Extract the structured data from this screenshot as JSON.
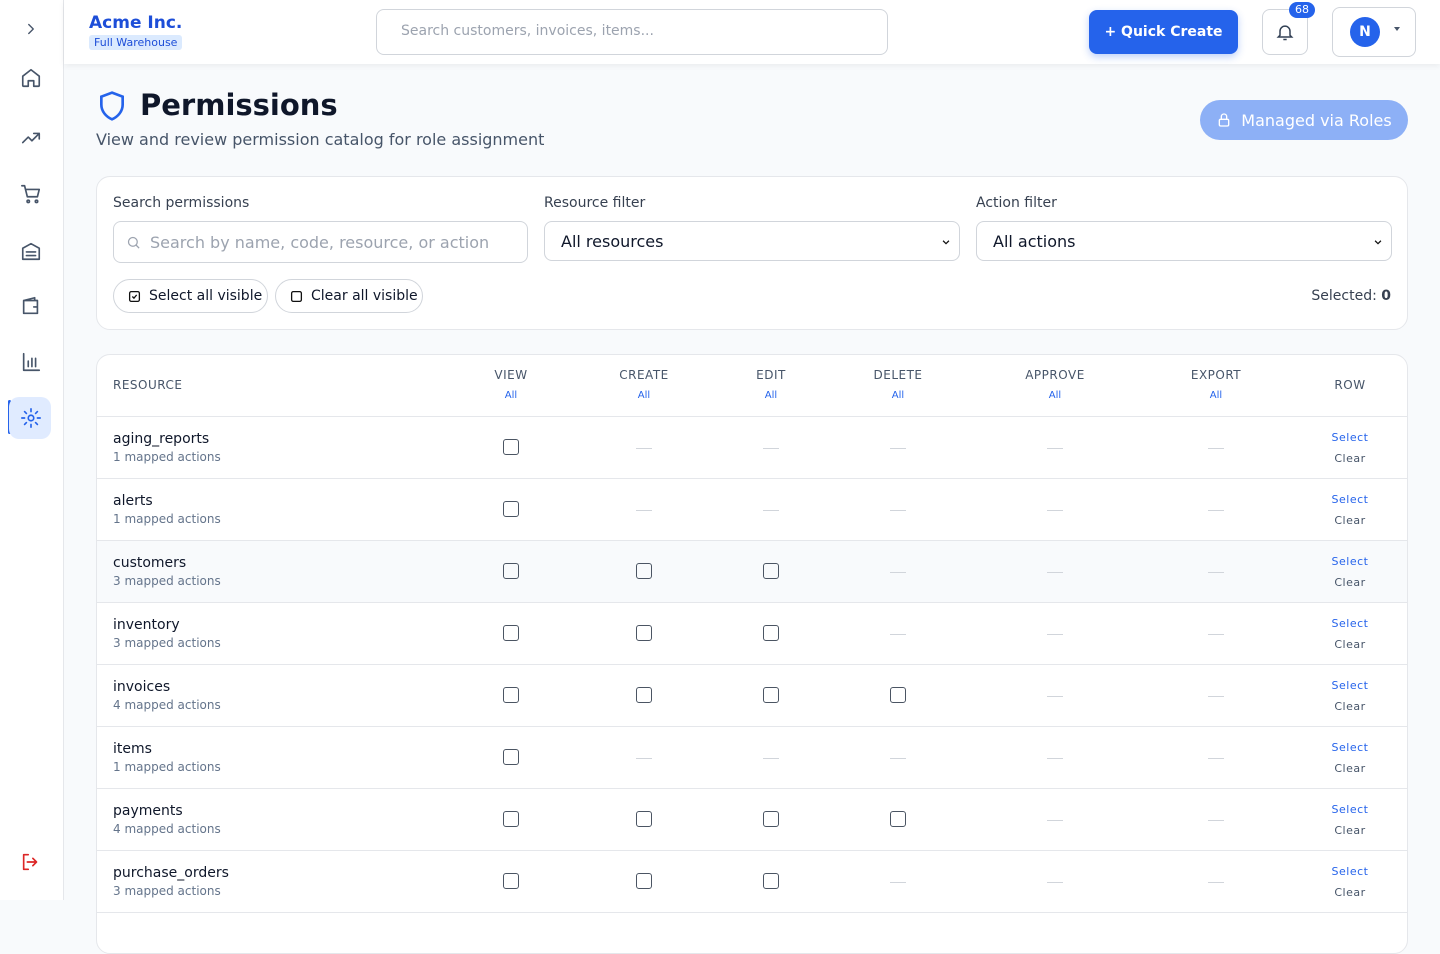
{
  "header": {
    "company": "Acme Inc.",
    "warehouse": "Full Warehouse",
    "search_placeholder": "Search customers, invoices, items...",
    "quick_create": "+ Quick Create",
    "notifications": 68,
    "avatar": "N"
  },
  "page": {
    "title": "Permissions",
    "subtitle": "View and review permission catalog for role assignment",
    "managed": "Managed via Roles"
  },
  "filters": {
    "search_label": "Search permissions",
    "search_placeholder": "Search by name, code, resource, or action",
    "resource_label": "Resource filter",
    "resource_value": "All resources",
    "action_label": "Action filter",
    "action_value": "All actions",
    "select_all": "Select all visible",
    "clear_all": "Clear all visible",
    "selected_label": "Selected:",
    "selected_count": 0
  },
  "table": {
    "columns": [
      "RESOURCE",
      "VIEW",
      "CREATE",
      "EDIT",
      "DELETE",
      "APPROVE",
      "EXPORT",
      "ROW"
    ],
    "all_label": "All",
    "select_label": "Select",
    "clear_label": "Clear",
    "rows": [
      {
        "name": "aging_reports",
        "mapped": "1 mapped actions",
        "actions": [
          true,
          false,
          false,
          false,
          false,
          false
        ]
      },
      {
        "name": "alerts",
        "mapped": "1 mapped actions",
        "actions": [
          true,
          false,
          false,
          false,
          false,
          false
        ]
      },
      {
        "name": "customers",
        "mapped": "3 mapped actions",
        "actions": [
          true,
          true,
          true,
          false,
          false,
          false
        ]
      },
      {
        "name": "inventory",
        "mapped": "3 mapped actions",
        "actions": [
          true,
          true,
          true,
          false,
          false,
          false
        ]
      },
      {
        "name": "invoices",
        "mapped": "4 mapped actions",
        "actions": [
          true,
          true,
          true,
          true,
          false,
          false
        ]
      },
      {
        "name": "items",
        "mapped": "1 mapped actions",
        "actions": [
          true,
          false,
          false,
          false,
          false,
          false
        ]
      },
      {
        "name": "payments",
        "mapped": "4 mapped actions",
        "actions": [
          true,
          true,
          true,
          true,
          false,
          false
        ]
      },
      {
        "name": "purchase_orders",
        "mapped": "3 mapped actions",
        "actions": [
          true,
          true,
          true,
          false,
          false,
          false
        ]
      }
    ]
  }
}
